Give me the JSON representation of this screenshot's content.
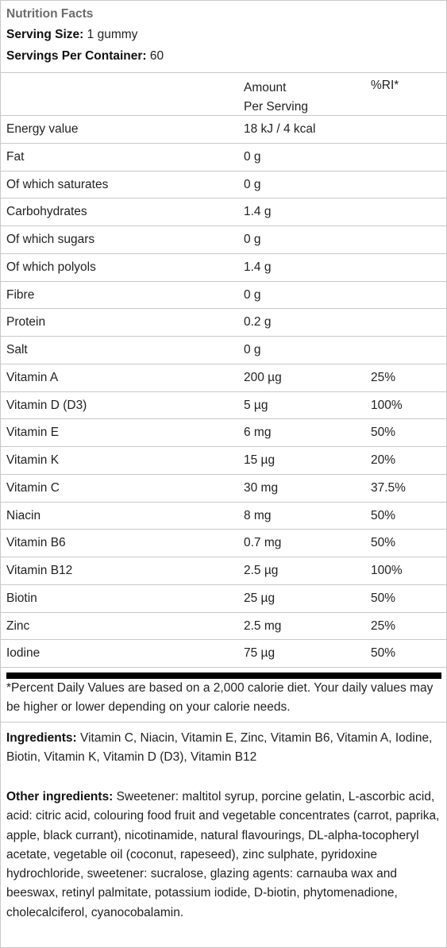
{
  "header": {
    "title": "Nutrition Facts",
    "serving_size_label": "Serving Size:",
    "serving_size_value": "1 gummy",
    "servings_label": "Servings Per Container:",
    "servings_value": "60"
  },
  "columns": {
    "amount_line1": "Amount",
    "amount_line2": "Per Serving",
    "ri": "%RI*"
  },
  "rows": [
    {
      "name": "Energy value",
      "amount": "18 kJ / 4 kcal",
      "ri": ""
    },
    {
      "name": "Fat",
      "amount": "0 g",
      "ri": ""
    },
    {
      "name": "Of which saturates",
      "amount": "0 g",
      "ri": ""
    },
    {
      "name": "Carbohydrates",
      "amount": "1.4 g",
      "ri": ""
    },
    {
      "name": "Of which sugars",
      "amount": "0 g",
      "ri": ""
    },
    {
      "name": "Of which polyols",
      "amount": "1.4 g",
      "ri": ""
    },
    {
      "name": "Fibre",
      "amount": "0 g",
      "ri": ""
    },
    {
      "name": "Protein",
      "amount": "0.2 g",
      "ri": ""
    },
    {
      "name": "Salt",
      "amount": "0 g",
      "ri": ""
    },
    {
      "name": "Vitamin A",
      "amount": "200 µg",
      "ri": "25%"
    },
    {
      "name": "Vitamin D (D3)",
      "amount": "5 µg",
      "ri": "100%"
    },
    {
      "name": "Vitamin E",
      "amount": "6 mg",
      "ri": "50%"
    },
    {
      "name": "Vitamin K",
      "amount": "15 µg",
      "ri": "20%"
    },
    {
      "name": "Vitamin C",
      "amount": "30 mg",
      "ri": "37.5%"
    },
    {
      "name": "Niacin",
      "amount": "8 mg",
      "ri": "50%"
    },
    {
      "name": "Vitamin B6",
      "amount": "0.7 mg",
      "ri": "50%"
    },
    {
      "name": "Vitamin B12",
      "amount": "2.5 µg",
      "ri": "100%"
    },
    {
      "name": "Biotin",
      "amount": "25 µg",
      "ri": "50%"
    },
    {
      "name": "Zinc",
      "amount": "2.5 mg",
      "ri": "25%"
    },
    {
      "name": "Iodine",
      "amount": "75 µg",
      "ri": "50%"
    }
  ],
  "footnote": "*Percent Daily Values are based on a 2,000 calorie diet. Your daily values may be higher or lower depending on your calorie needs.",
  "ingredients": {
    "label": "Ingredients:",
    "text": "Vitamin C, Niacin, Vitamin E, Zinc, Vitamin B6, Vitamin A, Iodine, Biotin, Vitamin K, Vitamin D (D3), Vitamin B12"
  },
  "other_ingredients": {
    "label": "Other ingredients:",
    "text": "Sweetener: maltitol syrup, porcine gelatin, L-ascorbic acid, acid: citric acid, colouring food fruit and vegetable concentrates (carrot, paprika, apple, black currant), nicotinamide, natural flavourings, DL-alpha-tocopheryl acetate, vegetable oil (coconut, rapeseed), zinc sulphate, pyridoxine hydrochloride, sweetener: sucralose, glazing agents: carnauba wax and beeswax, retinyl palmitate, potassium iodide, D-biotin, phytomenadione, cholecalciferol, cyanocobalamin."
  }
}
